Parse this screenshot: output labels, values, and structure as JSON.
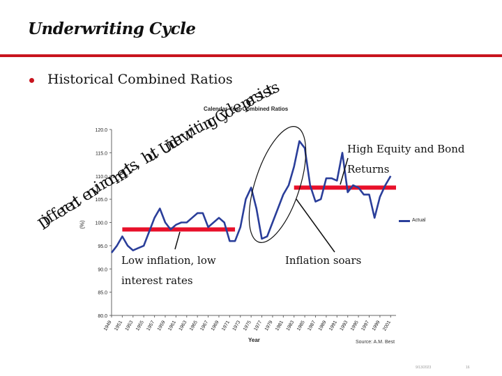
{
  "slide": {
    "title": "Underwriting Cycle",
    "bullet": "Historical Combined Ratios",
    "arc_text": "Different environments, but Underwriting Cycle persists",
    "callouts": {
      "low": "Low inflation, low interest rates",
      "inflation": "Inflation soars",
      "high": "High Equity and Bond Returns"
    },
    "source": "Source:  A.M. Best",
    "footer_date": "9/13/2023",
    "footer_page": "16"
  },
  "colors": {
    "accent": "#c8141e",
    "series": "#2a3e9a",
    "highlight_bar": "#e8102a"
  },
  "chart_data": {
    "type": "line",
    "title": "Calendar Year Combined Ratios",
    "xlabel": "Year",
    "ylabel": "(%)",
    "ylim": [
      80,
      120
    ],
    "yticks": [
      "80.0",
      "85.0",
      "90.0",
      "95.0",
      "100.0",
      "105.0",
      "110.0",
      "115.0",
      "120.0"
    ],
    "xlim": [
      1949,
      2002
    ],
    "xticks": [
      "1949",
      "1951",
      "1953",
      "1955",
      "1957",
      "1959",
      "1961",
      "1963",
      "1965",
      "1967",
      "1969",
      "1971",
      "1973",
      "1975",
      "1977",
      "1979",
      "1981",
      "1983",
      "1985",
      "1987",
      "1989",
      "1991",
      "1993",
      "1995",
      "1997",
      "1999",
      "2001"
    ],
    "grid": false,
    "legend": "right",
    "series": [
      {
        "name": "Actual",
        "x": [
          1949,
          1950,
          1951,
          1952,
          1953,
          1954,
          1955,
          1956,
          1957,
          1958,
          1959,
          1960,
          1961,
          1962,
          1963,
          1964,
          1965,
          1966,
          1967,
          1968,
          1969,
          1970,
          1971,
          1972,
          1973,
          1974,
          1975,
          1976,
          1977,
          1978,
          1979,
          1980,
          1981,
          1982,
          1983,
          1984,
          1985,
          1986,
          1987,
          1988,
          1989,
          1990,
          1991,
          1992,
          1993,
          1994,
          1995,
          1996,
          1997,
          1998,
          1999,
          2000,
          2001
        ],
        "values": [
          93.5,
          95,
          97,
          95,
          94,
          94.5,
          95,
          98,
          101,
          103,
          100,
          98.5,
          99.5,
          100,
          100,
          101,
          102,
          102,
          99,
          100,
          101,
          100,
          96,
          96,
          99,
          105,
          107.5,
          103,
          96.5,
          97,
          100,
          103,
          106,
          108,
          112,
          117.5,
          116,
          108,
          104.5,
          105,
          109.5,
          109.5,
          109,
          115,
          106.5,
          108,
          107.5,
          106,
          106,
          101,
          105.5,
          108,
          110
        ]
      }
    ],
    "highlights": [
      {
        "from": 1951,
        "to": 1972,
        "level": 98.5
      },
      {
        "from": 1983,
        "to": 2002,
        "level": 107.5
      }
    ]
  }
}
